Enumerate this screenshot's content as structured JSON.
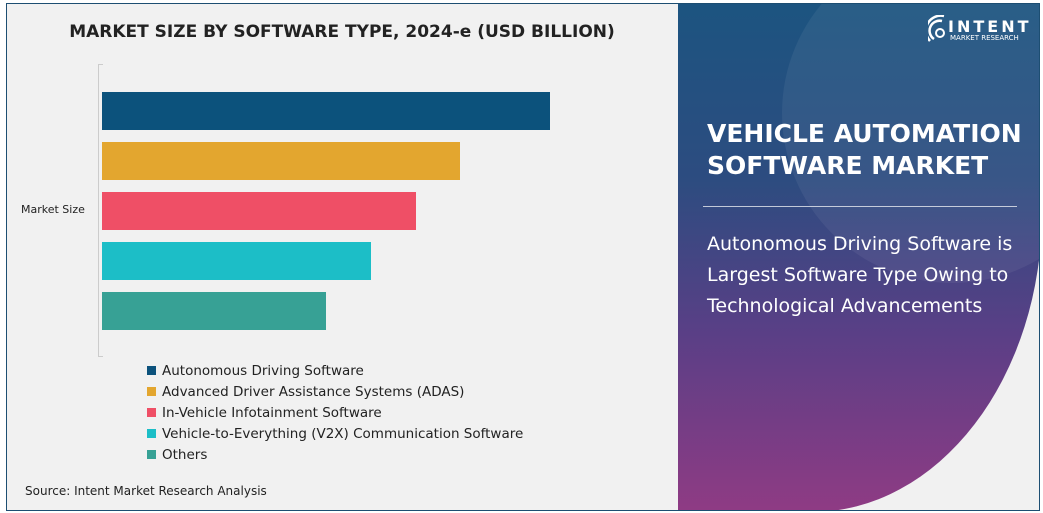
{
  "chart_data": {
    "type": "bar",
    "orientation": "horizontal",
    "title": "MARKET SIZE BY SOFTWARE TYPE, 2024-e (USD BILLION)",
    "ylabel": "Market Size",
    "xlabel": "",
    "categories": [
      "Market Size"
    ],
    "series": [
      {
        "name": "Autonomous Driving Software",
        "values": [
          100
        ],
        "color": "#0c527c"
      },
      {
        "name": "Advanced Driver Assistance Systems (ADAS)",
        "values": [
          80
        ],
        "color": "#e3a62f"
      },
      {
        "name": "In-Vehicle Infotainment Software",
        "values": [
          70
        ],
        "color": "#ef4f66"
      },
      {
        "name": "Vehicle-to-Everything (V2X) Communication Software",
        "values": [
          60
        ],
        "color": "#1cbec7"
      },
      {
        "name": "Others",
        "values": [
          50
        ],
        "color": "#37a195"
      }
    ],
    "value_note": "relative lengths; no axis values printed",
    "legend_position": "bottom",
    "grid": false
  },
  "source": "Source: Intent Market Research Analysis",
  "panel": {
    "logo_name": "INTENT",
    "logo_sub": "MARKET RESEARCH",
    "title": "VEHICLE AUTOMATION SOFTWARE MARKET",
    "subtitle": "Autonomous Driving Software is Largest Software Type Owing to Technological Advancements"
  }
}
